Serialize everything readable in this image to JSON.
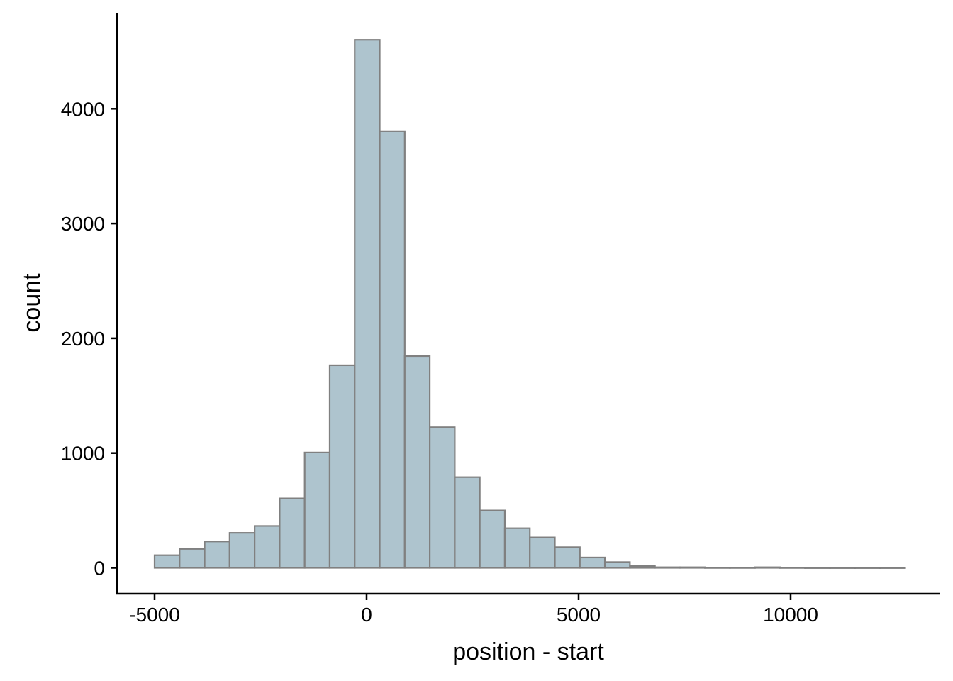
{
  "chart_data": {
    "type": "bar",
    "title": "",
    "xlabel": "position - start",
    "ylabel": "count",
    "xlim": [
      -5000,
      12700
    ],
    "ylim": [
      0,
      4600
    ],
    "x_ticks": [
      -5000,
      0,
      5000,
      10000
    ],
    "y_ticks": [
      0,
      1000,
      2000,
      3000,
      4000
    ],
    "x_tick_labels": [
      "-5000",
      "0",
      "5000",
      "10000"
    ],
    "y_tick_labels": [
      "0",
      "1000",
      "2000",
      "3000",
      "4000"
    ],
    "grid": false,
    "legend": "none",
    "bin_edges": [
      -5000,
      -4410,
      -3820,
      -3230,
      -2640,
      -2050,
      -1460,
      -870,
      -280,
      310,
      900,
      1490,
      2080,
      2670,
      3260,
      3850,
      4440,
      5030,
      5620,
      6210,
      6800,
      7390,
      7980,
      8570,
      9160,
      9750,
      10340,
      10930,
      11520,
      12110,
      12700
    ],
    "values": [
      110,
      165,
      230,
      305,
      365,
      605,
      1005,
      1765,
      4600,
      3805,
      1845,
      1225,
      790,
      500,
      345,
      265,
      180,
      90,
      50,
      15,
      5,
      5,
      2,
      2,
      5,
      2,
      1,
      1,
      1,
      1
    ],
    "colors": {
      "fill": "#aec4ce",
      "stroke": "#808080",
      "axis": "#000000"
    }
  }
}
